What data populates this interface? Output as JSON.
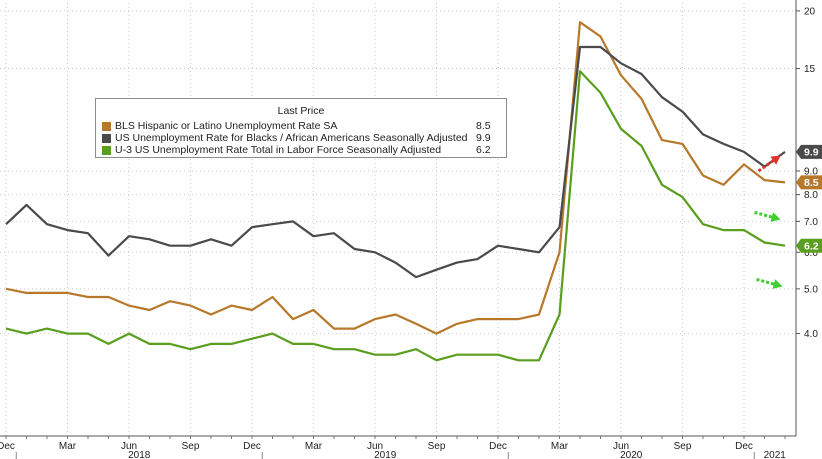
{
  "chart_data": {
    "type": "line",
    "title": "",
    "xlabel": "",
    "ylabel": "",
    "ylim": [
      2.4,
      20.8
    ],
    "y_scale": "log",
    "y_ticks": [
      {
        "value": 20,
        "label": "20"
      },
      {
        "value": 15,
        "label": "15"
      },
      {
        "value": 9.0,
        "label": "9.0"
      },
      {
        "value": 8.0,
        "label": "8.0"
      },
      {
        "value": 7.0,
        "label": "7.0"
      },
      {
        "value": 6.0,
        "label": "6.0"
      },
      {
        "value": 5.0,
        "label": "5.0"
      },
      {
        "value": 4.0,
        "label": "4.0"
      }
    ],
    "x_month_ticks": [
      {
        "idx": 0,
        "label": "Dec"
      },
      {
        "idx": 3,
        "label": "Mar"
      },
      {
        "idx": 6,
        "label": "Jun"
      },
      {
        "idx": 9,
        "label": "Sep"
      },
      {
        "idx": 12,
        "label": "Dec"
      },
      {
        "idx": 15,
        "label": "Mar"
      },
      {
        "idx": 18,
        "label": "Jun"
      },
      {
        "idx": 21,
        "label": "Sep"
      },
      {
        "idx": 24,
        "label": "Dec"
      },
      {
        "idx": 27,
        "label": "Mar"
      },
      {
        "idx": 30,
        "label": "Jun"
      },
      {
        "idx": 33,
        "label": "Sep"
      },
      {
        "idx": 36,
        "label": "Dec"
      }
    ],
    "x_years": [
      {
        "label": "2018",
        "start": 1,
        "end": 12
      },
      {
        "label": "2019",
        "start": 13,
        "end": 24
      },
      {
        "label": "2020",
        "start": 25,
        "end": 36
      },
      {
        "label": "2021",
        "start": 37,
        "end": 38
      }
    ],
    "x": [
      "2017-12",
      "2018-01",
      "2018-02",
      "2018-03",
      "2018-04",
      "2018-05",
      "2018-06",
      "2018-07",
      "2018-08",
      "2018-09",
      "2018-10",
      "2018-11",
      "2018-12",
      "2019-01",
      "2019-02",
      "2019-03",
      "2019-04",
      "2019-05",
      "2019-06",
      "2019-07",
      "2019-08",
      "2019-09",
      "2019-10",
      "2019-11",
      "2019-12",
      "2020-01",
      "2020-02",
      "2020-03",
      "2020-04",
      "2020-05",
      "2020-06",
      "2020-07",
      "2020-08",
      "2020-09",
      "2020-10",
      "2020-11",
      "2020-12",
      "2021-01",
      "2021-02"
    ],
    "legend": {
      "title": "Last Price",
      "placement": "top-left"
    },
    "series": [
      {
        "name": "BLS Hispanic or Latino Unemployment Rate SA",
        "legend_value": "8.5",
        "badge": "8.5",
        "color": "#b8782a",
        "values": [
          5.0,
          4.9,
          4.9,
          4.9,
          4.8,
          4.8,
          4.6,
          4.5,
          4.7,
          4.6,
          4.4,
          4.6,
          4.5,
          4.8,
          4.3,
          4.5,
          4.1,
          4.1,
          4.3,
          4.4,
          4.2,
          4.0,
          4.2,
          4.3,
          4.3,
          4.3,
          4.4,
          6.0,
          18.9,
          17.6,
          14.5,
          12.9,
          10.5,
          10.3,
          8.8,
          8.4,
          9.3,
          8.6,
          8.5
        ]
      },
      {
        "name": "US Unemployment Rate for Blacks / African Americans Seasonally Adjusted",
        "legend_value": "9.9",
        "badge": "9.9",
        "color": "#4a4a4a",
        "values": [
          6.9,
          7.6,
          6.9,
          6.7,
          6.6,
          5.9,
          6.5,
          6.4,
          6.2,
          6.2,
          6.4,
          6.2,
          6.8,
          6.9,
          7.0,
          6.5,
          6.6,
          6.1,
          6.0,
          5.7,
          5.3,
          5.5,
          5.7,
          5.8,
          6.2,
          6.1,
          6.0,
          6.8,
          16.7,
          16.7,
          15.4,
          14.6,
          13.0,
          12.1,
          10.8,
          10.3,
          9.9,
          9.2,
          9.9
        ]
      },
      {
        "name": "U-3 US Unemployment Rate Total in Labor Force Seasonally Adjusted",
        "legend_value": "6.2",
        "badge": "6.2",
        "color": "#5a9e1d",
        "values": [
          4.1,
          4.0,
          4.1,
          4.0,
          4.0,
          3.8,
          4.0,
          3.8,
          3.8,
          3.7,
          3.8,
          3.8,
          3.9,
          4.0,
          3.8,
          3.8,
          3.7,
          3.7,
          3.6,
          3.6,
          3.7,
          3.5,
          3.6,
          3.6,
          3.6,
          3.5,
          3.5,
          4.4,
          14.8,
          13.3,
          11.1,
          10.2,
          8.4,
          7.9,
          6.9,
          6.7,
          6.7,
          6.3,
          6.2
        ]
      }
    ],
    "annotations": [
      {
        "type": "arrow",
        "direction": "up",
        "color": "#e0332b",
        "near_series": 1
      },
      {
        "type": "arrow",
        "direction": "down",
        "color": "#3ecf2e",
        "near_series": 0
      },
      {
        "type": "arrow",
        "direction": "down",
        "color": "#3ecf2e",
        "near_series": 2
      }
    ]
  }
}
